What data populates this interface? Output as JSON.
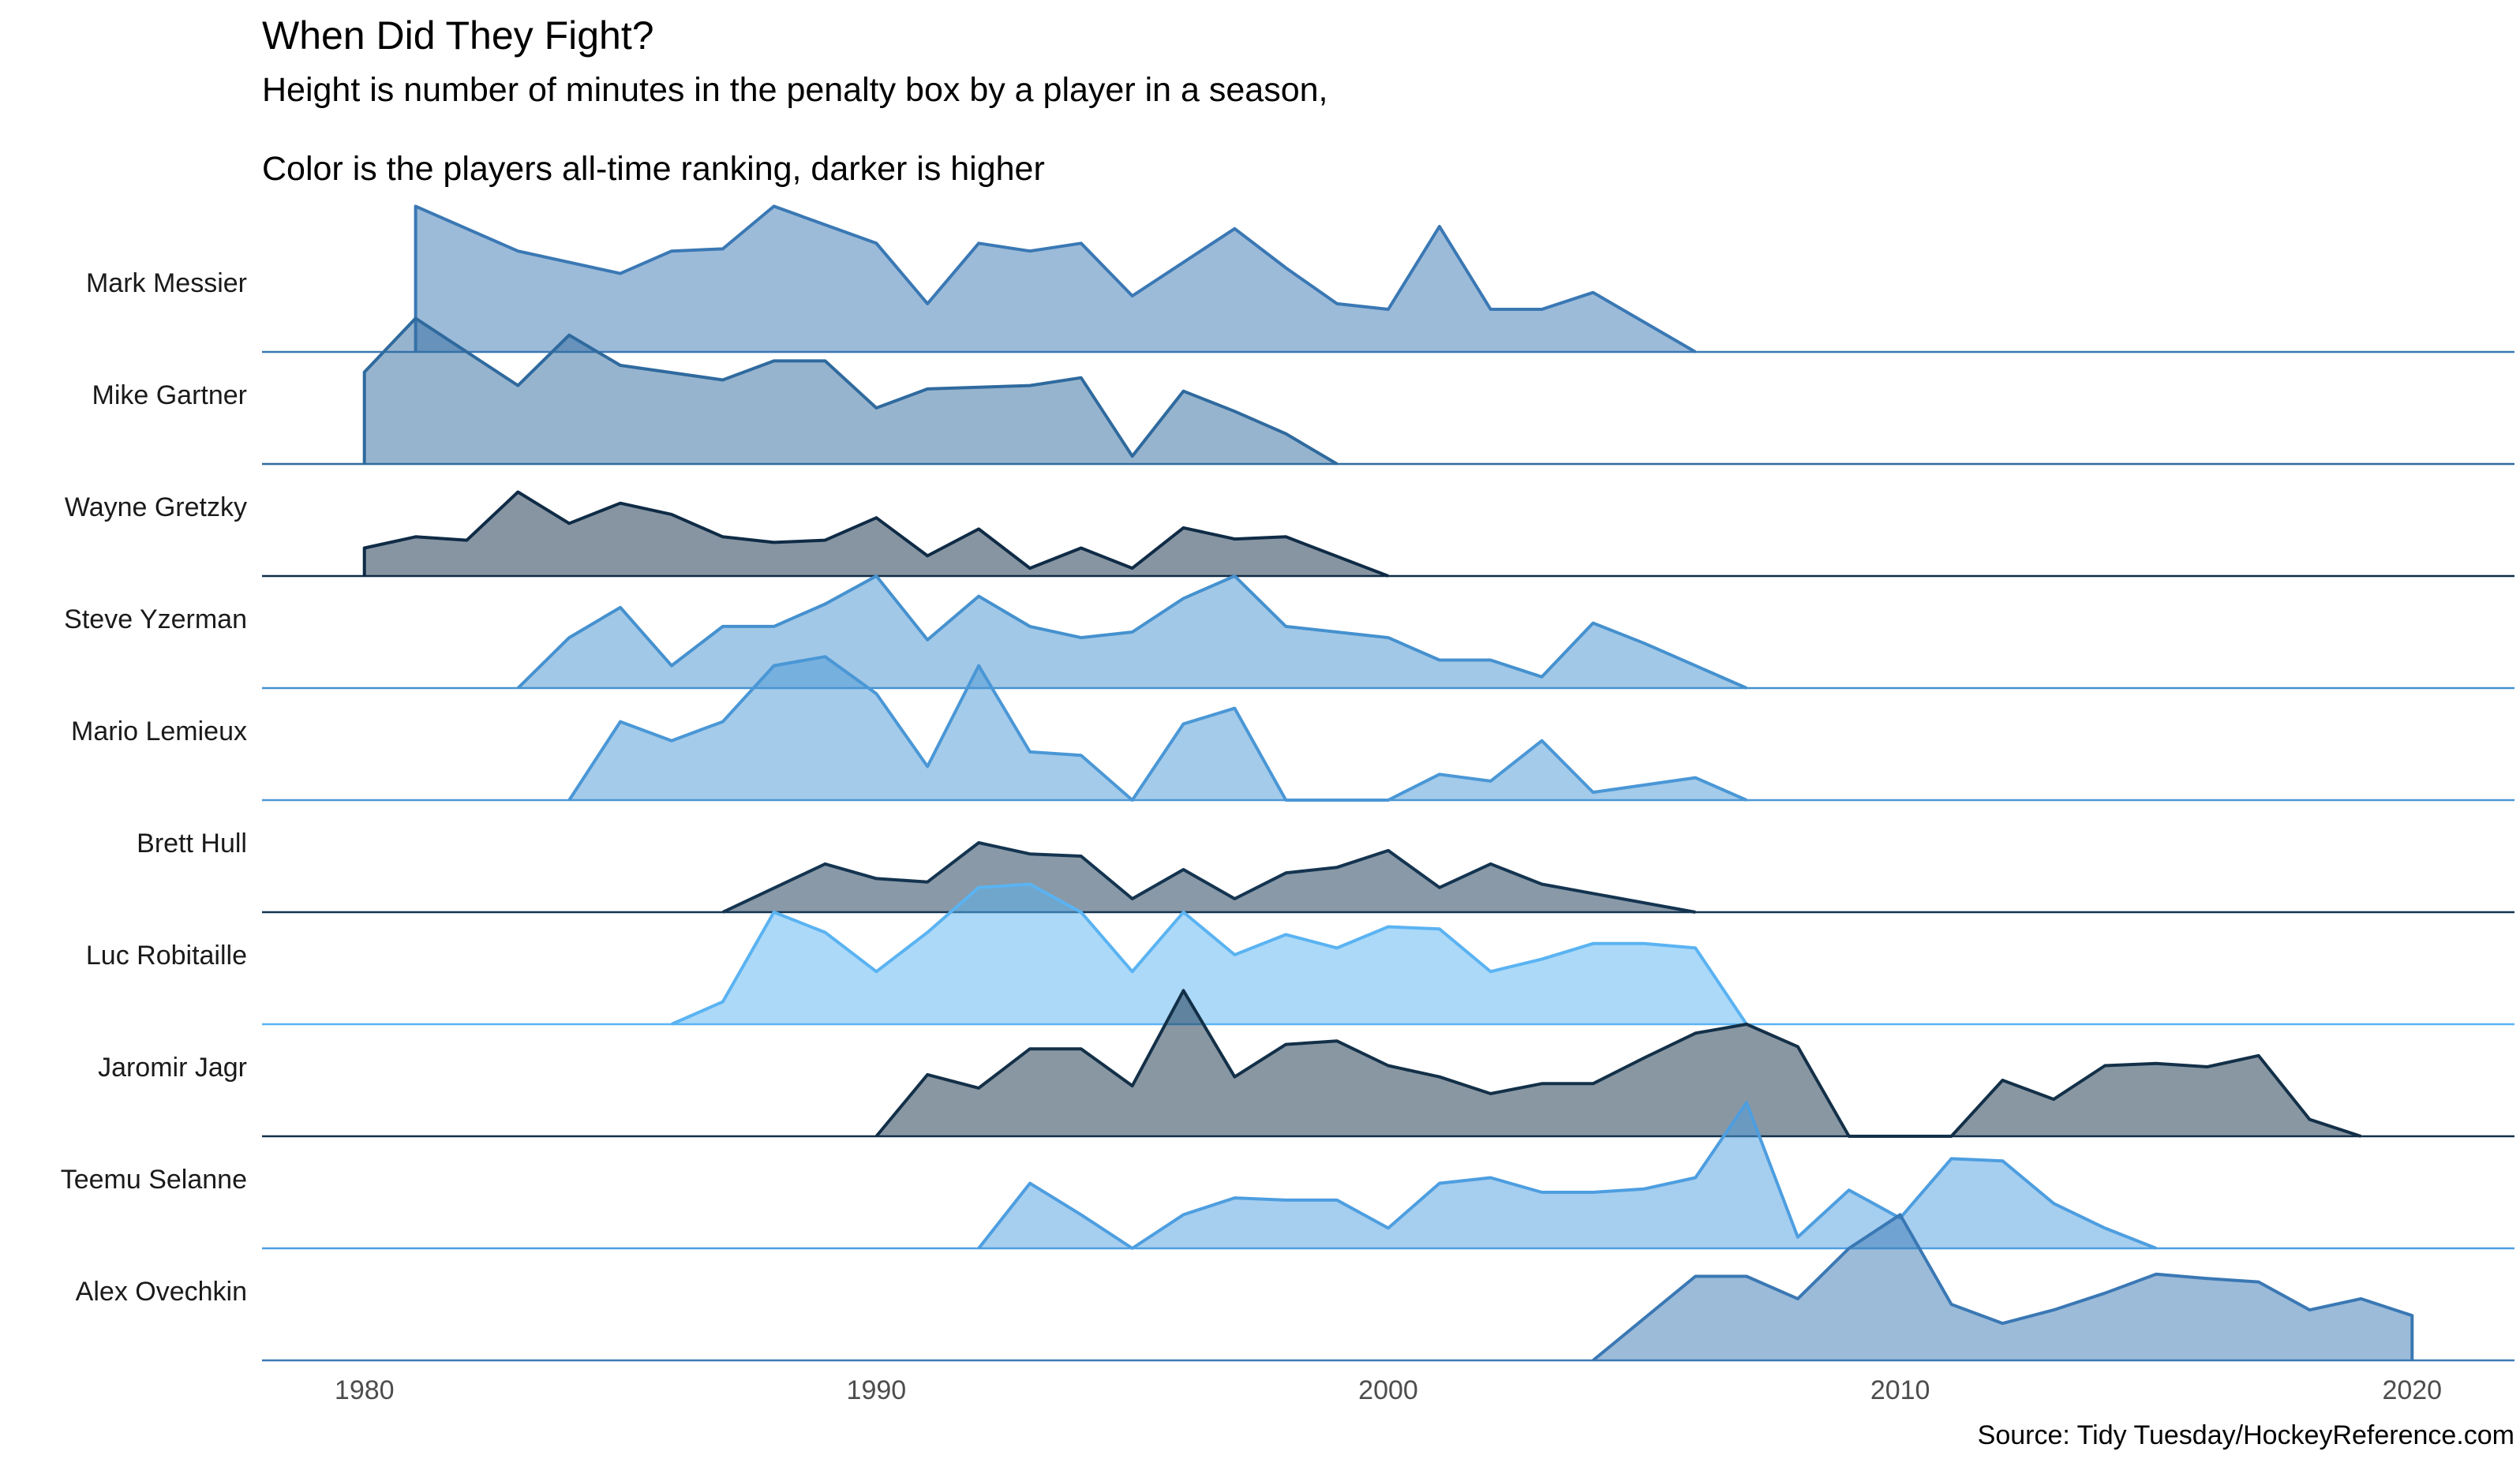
{
  "chart_data": {
    "type": "area",
    "title": "When Did They Fight?",
    "subtitle_line1": "Height is number of minutes in the penalty box by a player in a season,",
    "subtitle_line2": "Color is the players all-time ranking, darker is higher",
    "caption": "Source: Tidy Tuesday/HockeyReference.com",
    "xlabel": "",
    "ylabel": "",
    "xlim": [
      1978,
      2022
    ],
    "x_ticks": [
      1980,
      1990,
      2000,
      2010,
      2020
    ],
    "y_max_relative": 1.3,
    "grid": false,
    "legend": "none",
    "series": [
      {
        "name": "Mark Messier",
        "color": "#3a78b4",
        "x": [
          1981,
          1983,
          1985,
          1986,
          1987,
          1988,
          1990,
          1991,
          1992,
          1993,
          1994,
          1995,
          1996,
          1997,
          1998,
          1999,
          2000,
          2001,
          2002,
          2003,
          2004,
          2006
        ],
        "y": [
          1.3,
          0.9,
          0.7,
          0.9,
          0.92,
          1.3,
          0.97,
          0.43,
          0.97,
          0.9,
          0.97,
          0.5,
          0.8,
          1.1,
          0.75,
          0.43,
          0.38,
          1.12,
          0.38,
          0.38,
          0.53,
          0.0
        ]
      },
      {
        "name": "Mike Gartner",
        "color": "#2f6a9e",
        "x": [
          1980,
          1981,
          1983,
          1984,
          1985,
          1987,
          1988,
          1989,
          1990,
          1991,
          1993,
          1994,
          1995,
          1996,
          1997,
          1998,
          1999
        ],
        "y": [
          0.82,
          1.3,
          0.7,
          1.15,
          0.88,
          0.75,
          0.92,
          0.92,
          0.5,
          0.67,
          0.7,
          0.77,
          0.07,
          0.65,
          0.47,
          0.27,
          0.0
        ]
      },
      {
        "name": "Wayne Gretzky",
        "color": "#0f2b46",
        "x": [
          1980,
          1981,
          1982,
          1983,
          1984,
          1985,
          1986,
          1987,
          1988,
          1989,
          1990,
          1991,
          1992,
          1993,
          1994,
          1995,
          1996,
          1997,
          1998,
          2000
        ],
        "y": [
          0.25,
          0.35,
          0.32,
          0.75,
          0.47,
          0.65,
          0.55,
          0.35,
          0.3,
          0.32,
          0.52,
          0.18,
          0.42,
          0.07,
          0.25,
          0.07,
          0.43,
          0.33,
          0.35,
          0.0
        ]
      },
      {
        "name": "Steve Yzerman",
        "color": "#4591cf",
        "x": [
          1983,
          1984,
          1985,
          1986,
          1987,
          1988,
          1989,
          1990,
          1991,
          1992,
          1993,
          1994,
          1995,
          1996,
          1997,
          1998,
          1999,
          2000,
          2001,
          2002,
          2003,
          2004,
          2005,
          2006,
          2007
        ],
        "y": [
          0.0,
          0.45,
          0.72,
          0.2,
          0.55,
          0.55,
          0.75,
          1.0,
          0.43,
          0.82,
          0.55,
          0.45,
          0.5,
          0.8,
          1.0,
          0.55,
          0.5,
          0.45,
          0.25,
          0.25,
          0.1,
          0.58,
          0.4,
          0.2,
          0.0
        ]
      },
      {
        "name": "Mario Lemieux",
        "color": "#4a97d6",
        "x": [
          1984,
          1985,
          1986,
          1987,
          1988,
          1989,
          1990,
          1991,
          1992,
          1993,
          1994,
          1995,
          1996,
          1997,
          1998,
          2000,
          2001,
          2002,
          2003,
          2004,
          2006,
          2007
        ],
        "y": [
          0.0,
          0.7,
          0.53,
          0.7,
          1.2,
          1.28,
          0.95,
          0.3,
          1.2,
          0.43,
          0.4,
          0.0,
          0.68,
          0.82,
          0.0,
          0.0,
          0.23,
          0.17,
          0.53,
          0.07,
          0.2,
          0.0
        ]
      },
      {
        "name": "Brett Hull",
        "color": "#143450",
        "x": [
          1987,
          1989,
          1990,
          1991,
          1992,
          1993,
          1994,
          1995,
          1996,
          1997,
          1998,
          1999,
          2000,
          2001,
          2002,
          2003,
          2006
        ],
        "y": [
          0.0,
          0.43,
          0.3,
          0.27,
          0.62,
          0.52,
          0.5,
          0.12,
          0.38,
          0.12,
          0.35,
          0.4,
          0.55,
          0.22,
          0.43,
          0.25,
          0.0
        ]
      },
      {
        "name": "Luc Robitaille",
        "color": "#5ab3f2",
        "x": [
          1986,
          1987,
          1988,
          1989,
          1990,
          1991,
          1992,
          1993,
          1994,
          1995,
          1996,
          1997,
          1998,
          1999,
          2000,
          2001,
          2002,
          2003,
          2004,
          2005,
          2006,
          2007
        ],
        "y": [
          0.0,
          0.2,
          1.0,
          0.82,
          0.47,
          0.82,
          1.22,
          1.25,
          1.0,
          0.47,
          1.0,
          0.62,
          0.8,
          0.68,
          0.87,
          0.85,
          0.47,
          0.58,
          0.72,
          0.72,
          0.68,
          0.0
        ]
      },
      {
        "name": "Jaromir Jagr",
        "color": "#133048",
        "x": [
          1990,
          1991,
          1992,
          1993,
          1994,
          1995,
          1996,
          1997,
          1998,
          1999,
          2000,
          2001,
          2002,
          2003,
          2004,
          2005,
          2006,
          2007,
          2008,
          2009,
          2011,
          2012,
          2013,
          2014,
          2015,
          2016,
          2017,
          2018,
          2019
        ],
        "y": [
          0.0,
          0.55,
          0.43,
          0.78,
          0.78,
          0.45,
          1.3,
          0.53,
          0.82,
          0.85,
          0.63,
          0.53,
          0.38,
          0.47,
          0.47,
          0.7,
          0.92,
          1.0,
          0.8,
          0.0,
          0.0,
          0.5,
          0.33,
          0.63,
          0.65,
          0.62,
          0.72,
          0.15,
          0.0
        ]
      },
      {
        "name": "Teemu Selanne",
        "color": "#4d9ee0",
        "x": [
          1992,
          1993,
          1994,
          1995,
          1996,
          1997,
          1998,
          1999,
          2000,
          2001,
          2002,
          2003,
          2004,
          2005,
          2006,
          2007,
          2008,
          2009,
          2010,
          2011,
          2012,
          2013,
          2014,
          2015
        ],
        "y": [
          0.0,
          0.58,
          0.3,
          0.0,
          0.3,
          0.45,
          0.43,
          0.43,
          0.18,
          0.58,
          0.63,
          0.5,
          0.5,
          0.53,
          0.63,
          1.3,
          0.1,
          0.52,
          0.27,
          0.8,
          0.78,
          0.4,
          0.18,
          0.0
        ]
      },
      {
        "name": "Alex Ovechkin",
        "color": "#3a78b4",
        "x": [
          2004,
          2006,
          2007,
          2008,
          2009,
          2010,
          2011,
          2012,
          2013,
          2014,
          2015,
          2016,
          2017,
          2018,
          2019,
          2020
        ],
        "y": [
          0.0,
          0.75,
          0.75,
          0.55,
          1.0,
          1.3,
          0.5,
          0.33,
          0.45,
          0.6,
          0.77,
          0.73,
          0.7,
          0.45,
          0.55,
          0.4
        ]
      }
    ]
  }
}
